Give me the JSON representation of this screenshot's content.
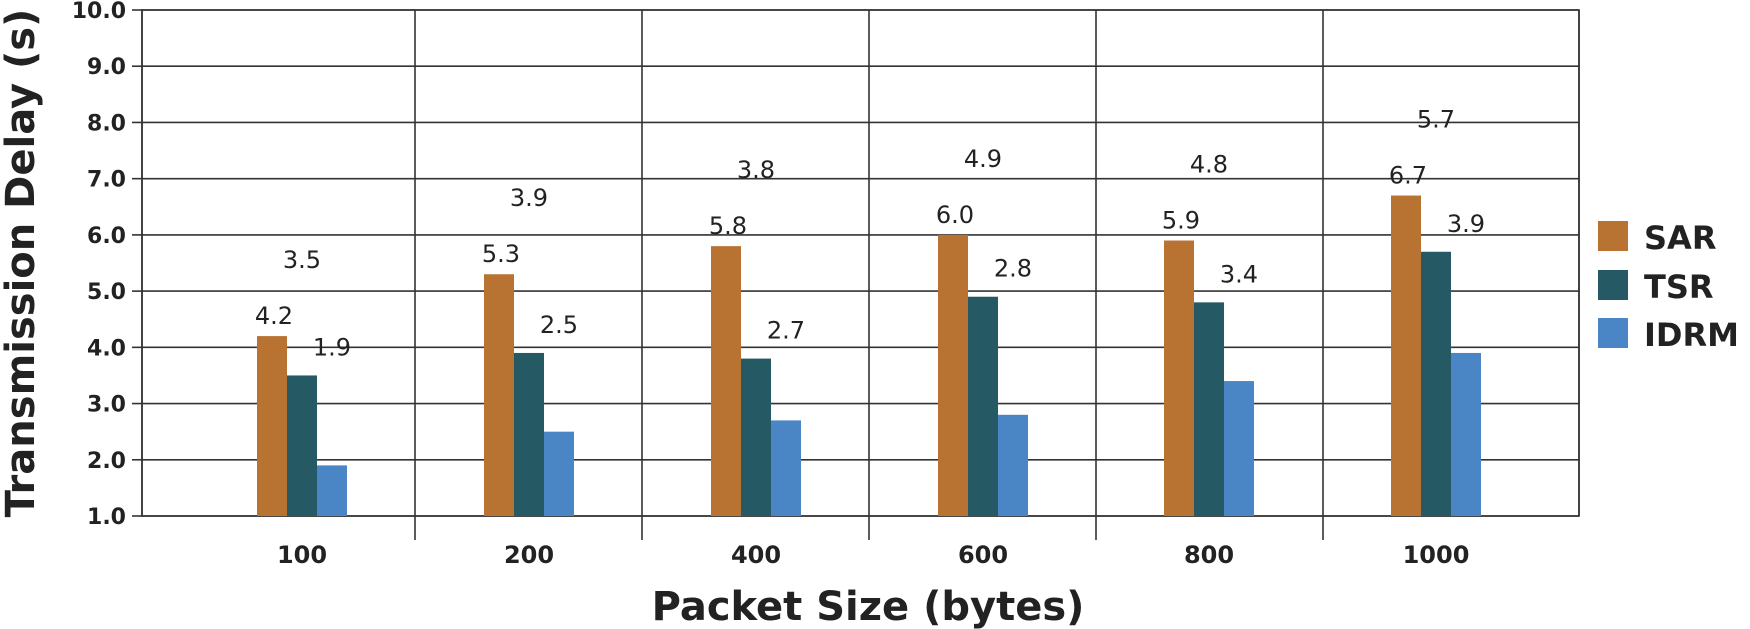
{
  "chart_data": {
    "type": "bar",
    "categories": [
      "100",
      "200",
      "400",
      "600",
      "800",
      "1000"
    ],
    "series": [
      {
        "name": "SAR",
        "color": "#B87333",
        "values": [
          4.2,
          5.3,
          5.8,
          6.0,
          5.9,
          6.7
        ]
      },
      {
        "name": "TSR",
        "color": "#255A64",
        "values": [
          3.5,
          3.9,
          3.8,
          4.9,
          4.8,
          5.7
        ]
      },
      {
        "name": "IDRM",
        "color": "#4A85C6",
        "values": [
          1.9,
          2.5,
          2.7,
          2.8,
          3.4,
          3.9
        ]
      }
    ],
    "data_labels": {
      "SAR": [
        "4.2",
        "5.3",
        "5.8",
        "6.0",
        "5.9",
        "6.7"
      ],
      "TSR": [
        "3.5",
        "3.9",
        "3.8",
        "4.9",
        "4.8",
        "5.7"
      ],
      "IDRM": [
        "1.9",
        "2.5",
        "2.7",
        "2.8",
        "3.4",
        "3.9"
      ]
    },
    "xlabel": "Packet Size (bytes)",
    "ylabel": "Transmission Delay (s)",
    "ylim": [
      1.0,
      10.0
    ],
    "yticks": [
      "1.0",
      "2.0",
      "3.0",
      "4.0",
      "5.0",
      "6.0",
      "7.0",
      "8.0",
      "9.0",
      "10.0"
    ],
    "grid": true,
    "legend_position": "right"
  }
}
